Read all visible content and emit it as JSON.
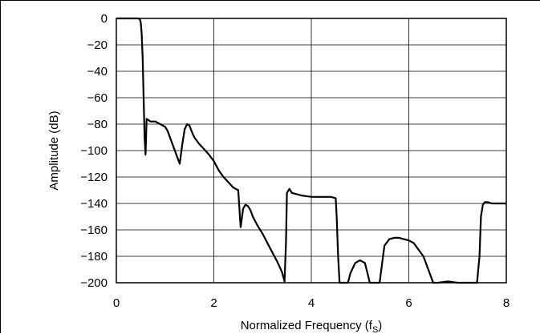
{
  "chart_data": {
    "type": "line",
    "title": "",
    "xlabel": "Normalized Frequency (f",
    "xlabel_subscript": "S",
    "xlabel_close": ")",
    "ylabel": "Amplitude (dB)",
    "xlim": [
      0,
      8
    ],
    "ylim": [
      -200,
      0
    ],
    "xticks": [
      0,
      2,
      4,
      6,
      8
    ],
    "yticks": [
      0,
      -20,
      -40,
      -60,
      -80,
      -100,
      -120,
      -140,
      -160,
      -180,
      -200
    ],
    "xtick_labels": [
      "0",
      "2",
      "4",
      "6",
      "8"
    ],
    "ytick_labels": [
      "0",
      "−20",
      "−40",
      "−60",
      "−80",
      "−100",
      "−120",
      "−140",
      "−160",
      "−180",
      "−200"
    ],
    "grid": true,
    "legend": "none",
    "series": [
      {
        "color": "#000000",
        "x": [
          0.0,
          0.45,
          0.48,
          0.5,
          0.52,
          0.54,
          0.56,
          0.58,
          0.6,
          0.62,
          0.7,
          0.8,
          0.9,
          1.0,
          1.05,
          1.1,
          1.15,
          1.2,
          1.25,
          1.3,
          1.35,
          1.4,
          1.45,
          1.5,
          1.55,
          1.6,
          1.7,
          1.8,
          1.9,
          2.0,
          2.1,
          2.2,
          2.3,
          2.4,
          2.5,
          2.55,
          2.6,
          2.65,
          2.7,
          2.75,
          2.8,
          2.9,
          3.0,
          3.1,
          3.2,
          3.3,
          3.4,
          3.45,
          3.48,
          3.5,
          3.55,
          3.6,
          3.8,
          4.0,
          4.2,
          4.4,
          4.5,
          4.52,
          4.55,
          4.58,
          4.6,
          4.75,
          4.8,
          4.9,
          5.0,
          5.1,
          5.2,
          5.3,
          5.4,
          5.5,
          5.6,
          5.7,
          5.8,
          5.9,
          6.0,
          6.1,
          6.2,
          6.3,
          6.4,
          6.5,
          6.6,
          6.8,
          7.0,
          7.3,
          7.4,
          7.45,
          7.48,
          7.52,
          7.56,
          7.62,
          7.7,
          7.8,
          7.9,
          8.0
        ],
        "y": [
          0.0,
          0.0,
          -0.5,
          -3,
          -12,
          -30,
          -60,
          -90,
          -103,
          -76,
          -78,
          -78,
          -80,
          -82,
          -85,
          -90,
          -95,
          -100,
          -105,
          -110,
          -96,
          -84,
          -80,
          -81,
          -86,
          -90,
          -95,
          -99,
          -103,
          -108,
          -115,
          -120,
          -124,
          -128,
          -130,
          -158,
          -144,
          -141,
          -142,
          -145,
          -150,
          -157,
          -163,
          -170,
          -177,
          -184,
          -192,
          -199,
          -170,
          -132,
          -129,
          -132,
          -134,
          -135,
          -135,
          -135,
          -136,
          -150,
          -180,
          -200,
          -200,
          -200,
          -193,
          -185,
          -183,
          -185,
          -200,
          -200,
          -200,
          -172,
          -167,
          -166,
          -166,
          -167,
          -168,
          -170,
          -175,
          -180,
          -190,
          -200,
          -200,
          -199,
          -200,
          -200,
          -200,
          -180,
          -150,
          -141,
          -139,
          -139,
          -140,
          -140,
          -140,
          -140
        ]
      }
    ]
  }
}
